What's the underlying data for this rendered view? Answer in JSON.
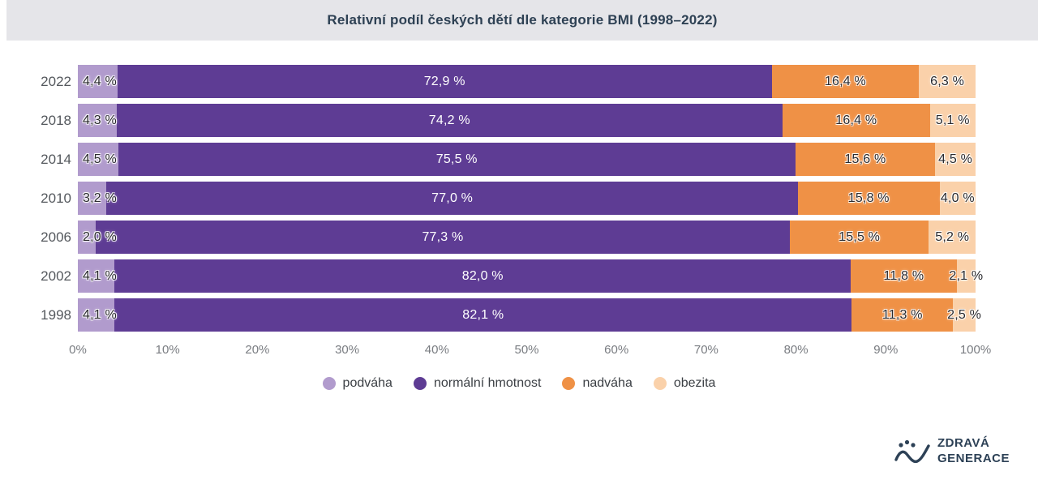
{
  "header": {
    "title": "Relativní podíl českých dětí dle kategorie BMI (1998–2022)"
  },
  "chart_data": {
    "type": "bar",
    "variant": "horizontal-stacked",
    "title": "Relativní podíl českých dětí dle kategorie BMI (1998–2022)",
    "categories": [
      "2022",
      "2018",
      "2014",
      "2010",
      "2006",
      "2002",
      "1998"
    ],
    "series": [
      {
        "name": "podváha",
        "slug": "podvaha",
        "color": "#b19bcd",
        "text_color": "#2a2a2e",
        "label_align": "left",
        "values": [
          4.4,
          4.3,
          4.5,
          3.2,
          2.0,
          4.1,
          4.1
        ],
        "labels": [
          "4,4 %",
          "4,3 %",
          "4,5 %",
          "3,2 %",
          "2,0 %",
          "4,1 %",
          "4,1 %"
        ]
      },
      {
        "name": "normální hmotnost",
        "slug": "normalni-hmotnost",
        "color": "#5e3c94",
        "text_color": "#ffffff",
        "label_align": "center",
        "values": [
          72.9,
          74.2,
          75.5,
          77.0,
          77.3,
          82.0,
          82.1
        ],
        "labels": [
          "72,9 %",
          "74,2 %",
          "75,5 %",
          "77,0 %",
          "77,3 %",
          "82,0 %",
          "82,1 %"
        ]
      },
      {
        "name": "nadváha",
        "slug": "nadvaha",
        "color": "#ef9146",
        "text_color": "#2a2a2e",
        "label_align": "center",
        "values": [
          16.4,
          16.4,
          15.6,
          15.8,
          15.5,
          11.8,
          11.3
        ],
        "labels": [
          "16,4 %",
          "16,4 %",
          "15,6 %",
          "15,8 %",
          "15,5 %",
          "11,8 %",
          "11,3 %"
        ]
      },
      {
        "name": "obezita",
        "slug": "obezita",
        "color": "#fad1aa",
        "text_color": "#2a2a2e",
        "label_align": "center",
        "values": [
          6.3,
          5.1,
          4.5,
          4.0,
          5.2,
          2.1,
          2.5
        ],
        "labels": [
          "6,3 %",
          "5,1 %",
          "4,5 %",
          "4,0 %",
          "5,2 %",
          "2,1 %",
          "2,5 %"
        ]
      }
    ],
    "x_ticks": [
      "0%",
      "10%",
      "20%",
      "30%",
      "40%",
      "50%",
      "60%",
      "70%",
      "80%",
      "90%",
      "100%"
    ],
    "xlim": [
      0,
      100
    ],
    "grid": false,
    "legend_position": "bottom"
  },
  "legend": {
    "items": [
      "podváha",
      "normální hmotnost",
      "nadváha",
      "obezita"
    ]
  },
  "logo": {
    "line1": "ZDRAVÁ",
    "line2": "GENERACE",
    "icon": "wave-icon",
    "color": "#2d4156"
  },
  "colors": {
    "title_band_bg": "#e5e5e9",
    "title_text": "#2e4154",
    "year_label": "#54585d",
    "axis_label": "#797c81",
    "legend_text": "#3b3f44"
  }
}
